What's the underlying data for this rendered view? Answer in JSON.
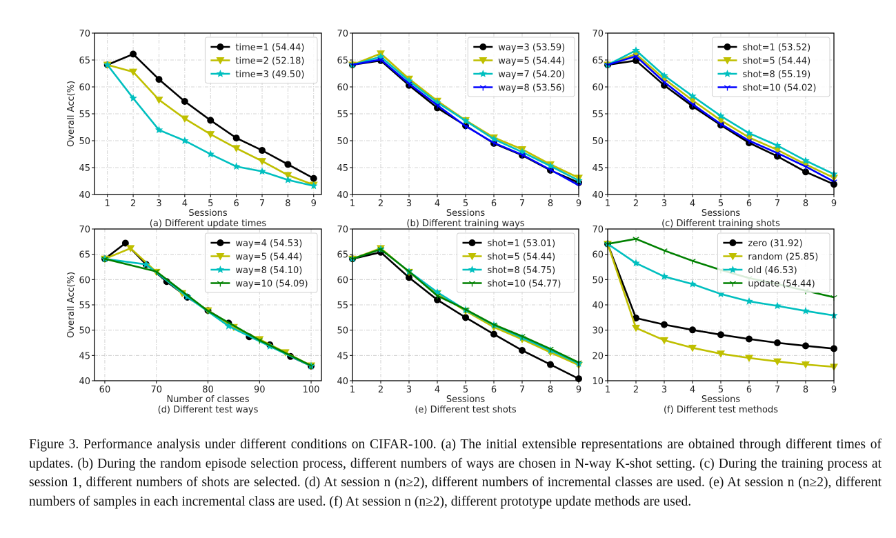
{
  "caption": "Figure 3. Performance analysis under different conditions on CIFAR-100. (a) The initial extensible representations are obtained through different times of updates. (b) During the random episode selection process, different numbers of ways are chosen in N-way K-shot setting. (c) During the training process at session 1, different numbers of shots are selected. (d) At session n (n≥2), different numbers of incremental classes are used. (e) At session n (n≥2), different numbers of samples in each incremental class are used. (f) At session n (n≥2), different prototype update methods are used.",
  "colors": {
    "k": "#000000",
    "y": "#bfbf00",
    "c": "#00bfbf",
    "b": "#0000ff",
    "g": "#008000"
  },
  "chart_data": [
    {
      "type": "line",
      "title": "(a) Different update times",
      "xlabel": "Sessions",
      "ylabel": "Overall Acc(%)",
      "xlim": [
        0.5,
        9.3
      ],
      "ylim": [
        40,
        70
      ],
      "xticks": [
        1,
        2,
        3,
        4,
        5,
        6,
        7,
        8,
        9
      ],
      "yticks": [
        40,
        45,
        50,
        55,
        60,
        65,
        70
      ],
      "grid": true,
      "legend": "top-right",
      "series": [
        {
          "name": "time=1 (54.44)",
          "color": "k",
          "marker": "circle",
          "x": [
            1,
            2,
            3,
            4,
            5,
            6,
            7,
            8,
            9
          ],
          "values": [
            64.1,
            66.1,
            61.4,
            57.3,
            53.8,
            50.5,
            48.2,
            45.6,
            43.0
          ]
        },
        {
          "name": "time=2 (52.18)",
          "color": "y",
          "marker": "triangle-down",
          "x": [
            1,
            2,
            3,
            4,
            5,
            6,
            7,
            8,
            9
          ],
          "values": [
            64.1,
            62.8,
            57.6,
            54.1,
            51.2,
            48.6,
            46.2,
            43.6,
            41.8
          ]
        },
        {
          "name": "time=3 (49.50)",
          "color": "c",
          "marker": "star",
          "x": [
            1,
            2,
            3,
            4,
            5,
            6,
            7,
            8,
            9
          ],
          "values": [
            64.1,
            57.9,
            52.0,
            50.0,
            47.5,
            45.2,
            44.3,
            42.7,
            41.6
          ]
        }
      ]
    },
    {
      "type": "line",
      "title": "(b) Different training ways",
      "xlabel": "Sessions",
      "ylabel": "",
      "xlim": [
        1,
        9
      ],
      "ylim": [
        40,
        70
      ],
      "xticks": [
        1,
        2,
        3,
        4,
        5,
        6,
        7,
        8,
        9
      ],
      "yticks": [
        40,
        45,
        50,
        55,
        60,
        65,
        70
      ],
      "grid": true,
      "legend": "top-right",
      "series": [
        {
          "name": "way=3 (53.59)",
          "color": "k",
          "marker": "circle",
          "x": [
            1,
            2,
            3,
            4,
            5,
            6,
            7,
            8,
            9
          ],
          "values": [
            64.1,
            64.9,
            60.3,
            56.1,
            52.8,
            49.5,
            47.3,
            44.5,
            42.2
          ]
        },
        {
          "name": "way=5 (54.44)",
          "color": "y",
          "marker": "triangle-down",
          "x": [
            1,
            2,
            3,
            4,
            5,
            6,
            7,
            8,
            9
          ],
          "values": [
            64.1,
            66.2,
            61.5,
            57.4,
            53.8,
            50.6,
            48.4,
            45.6,
            43.1
          ]
        },
        {
          "name": "way=7 (54.20)",
          "color": "c",
          "marker": "star",
          "x": [
            1,
            2,
            3,
            4,
            5,
            6,
            7,
            8,
            9
          ],
          "values": [
            64.1,
            65.6,
            61.1,
            57.1,
            53.7,
            50.3,
            47.9,
            45.3,
            42.6
          ]
        },
        {
          "name": "way=8 (53.56)",
          "color": "b",
          "marker": "tri",
          "x": [
            1,
            2,
            3,
            4,
            5,
            6,
            7,
            8,
            9
          ],
          "values": [
            64.1,
            65.1,
            60.6,
            56.6,
            52.7,
            49.6,
            47.4,
            44.6,
            41.7
          ]
        }
      ]
    },
    {
      "type": "line",
      "title": "(c) Different training shots",
      "xlabel": "Sessions",
      "ylabel": "",
      "xlim": [
        1,
        9
      ],
      "ylim": [
        40,
        70
      ],
      "xticks": [
        1,
        2,
        3,
        4,
        5,
        6,
        7,
        8,
        9
      ],
      "yticks": [
        40,
        45,
        50,
        55,
        60,
        65,
        70
      ],
      "grid": true,
      "legend": "top-right",
      "series": [
        {
          "name": "shot=1 (53.52)",
          "color": "k",
          "marker": "circle",
          "x": [
            1,
            2,
            3,
            4,
            5,
            6,
            7,
            8,
            9
          ],
          "values": [
            64.1,
            64.9,
            60.3,
            56.4,
            52.9,
            49.6,
            47.1,
            44.2,
            41.9
          ]
        },
        {
          "name": "shot=5 (54.44)",
          "color": "y",
          "marker": "triangle-down",
          "x": [
            1,
            2,
            3,
            4,
            5,
            6,
            7,
            8,
            9
          ],
          "values": [
            64.1,
            66.1,
            61.5,
            57.5,
            53.8,
            50.6,
            48.3,
            45.6,
            43.1
          ]
        },
        {
          "name": "shot=8 (55.19)",
          "color": "c",
          "marker": "star",
          "x": [
            1,
            2,
            3,
            4,
            5,
            6,
            7,
            8,
            9
          ],
          "values": [
            64.1,
            66.8,
            62.1,
            58.3,
            54.6,
            51.4,
            49.1,
            46.3,
            43.8
          ]
        },
        {
          "name": "shot=10 (54.02)",
          "color": "b",
          "marker": "tri",
          "x": [
            1,
            2,
            3,
            4,
            5,
            6,
            7,
            8,
            9
          ],
          "values": [
            64.1,
            65.7,
            60.9,
            56.8,
            53.1,
            50.0,
            47.7,
            45.2,
            42.4
          ]
        }
      ]
    },
    {
      "type": "line",
      "title": "(d) Different test ways",
      "xlabel": "Number of classes",
      "ylabel": "Overall Acc(%)",
      "xlim": [
        58,
        102
      ],
      "ylim": [
        40,
        70
      ],
      "xticks": [
        60,
        70,
        80,
        90,
        100
      ],
      "yticks": [
        40,
        45,
        50,
        55,
        60,
        65,
        70
      ],
      "grid": true,
      "legend": "top-right",
      "series": [
        {
          "name": "way=4 (54.53)",
          "color": "k",
          "marker": "circle",
          "x": [
            60,
            64,
            68,
            72,
            76,
            80,
            84,
            88,
            92,
            96,
            100
          ],
          "values": [
            64.1,
            67.2,
            63.0,
            59.6,
            56.5,
            53.9,
            51.4,
            48.7,
            47.1,
            44.8,
            42.9
          ]
        },
        {
          "name": "way=5 (54.44)",
          "color": "y",
          "marker": "triangle-down",
          "x": [
            60,
            65,
            70,
            75,
            80,
            85,
            90,
            95,
            100
          ],
          "values": [
            64.1,
            66.2,
            61.5,
            57.3,
            53.9,
            50.6,
            48.2,
            45.6,
            43.0
          ]
        },
        {
          "name": "way=8 (54.10)",
          "color": "c",
          "marker": "star",
          "x": [
            60,
            68,
            76,
            84,
            92,
            100
          ],
          "values": [
            64.1,
            63.0,
            56.6,
            50.8,
            46.8,
            42.9
          ]
        },
        {
          "name": "way=10 (54.09)",
          "color": "g",
          "marker": "tri",
          "x": [
            60,
            70,
            80,
            90,
            100
          ],
          "values": [
            64.1,
            61.6,
            53.8,
            48.0,
            43.0
          ]
        }
      ]
    },
    {
      "type": "line",
      "title": "(e) Different test shots",
      "xlabel": "Sessions",
      "ylabel": "",
      "xlim": [
        1,
        9
      ],
      "ylim": [
        40,
        70
      ],
      "xticks": [
        1,
        2,
        3,
        4,
        5,
        6,
        7,
        8,
        9
      ],
      "yticks": [
        40,
        45,
        50,
        55,
        60,
        65,
        70
      ],
      "grid": true,
      "legend": "top-right",
      "series": [
        {
          "name": "shot=1 (53.01)",
          "color": "k",
          "marker": "circle",
          "x": [
            1,
            2,
            3,
            4,
            5,
            6,
            7,
            8,
            9
          ],
          "values": [
            64.1,
            65.4,
            60.4,
            56.0,
            52.5,
            49.2,
            46.0,
            43.2,
            40.4
          ]
        },
        {
          "name": "shot=5 (54.44)",
          "color": "y",
          "marker": "triangle-down",
          "x": [
            1,
            2,
            3,
            4,
            5,
            6,
            7,
            8,
            9
          ],
          "values": [
            64.1,
            66.2,
            61.5,
            57.3,
            53.8,
            50.6,
            48.2,
            45.6,
            43.1
          ]
        },
        {
          "name": "shot=8 (54.75)",
          "color": "c",
          "marker": "star",
          "x": [
            1,
            2,
            3,
            4,
            5,
            6,
            7,
            8,
            9
          ],
          "values": [
            64.1,
            66.0,
            61.6,
            57.5,
            54.0,
            51.0,
            48.5,
            46.0,
            43.4
          ]
        },
        {
          "name": "shot=10 (54.77)",
          "color": "g",
          "marker": "tri",
          "x": [
            1,
            2,
            3,
            4,
            5,
            6,
            7,
            8,
            9
          ],
          "values": [
            64.1,
            66.0,
            61.6,
            56.8,
            54.1,
            51.1,
            48.8,
            46.3,
            43.6
          ]
        }
      ]
    },
    {
      "type": "line",
      "title": "(f) Different test methods",
      "xlabel": "Sessions",
      "ylabel": "",
      "xlim": [
        1,
        9
      ],
      "ylim": [
        10,
        70
      ],
      "xticks": [
        1,
        2,
        3,
        4,
        5,
        6,
        7,
        8,
        9
      ],
      "yticks": [
        10,
        20,
        30,
        40,
        50,
        60,
        70
      ],
      "grid": true,
      "legend": "top-right",
      "series": [
        {
          "name": "zero (31.92)",
          "color": "k",
          "marker": "circle",
          "x": [
            1,
            2,
            3,
            4,
            5,
            6,
            7,
            8,
            9
          ],
          "values": [
            64.1,
            34.8,
            32.2,
            30.1,
            28.2,
            26.5,
            25.0,
            23.8,
            22.7
          ]
        },
        {
          "name": "random (25.85)",
          "color": "y",
          "marker": "triangle-down",
          "x": [
            1,
            2,
            3,
            4,
            5,
            6,
            7,
            8,
            9
          ],
          "values": [
            64.1,
            30.9,
            26.0,
            23.0,
            20.7,
            19.0,
            17.6,
            16.4,
            15.5
          ]
        },
        {
          "name": "old (46.53)",
          "color": "c",
          "marker": "star",
          "x": [
            1,
            2,
            3,
            4,
            5,
            6,
            7,
            8,
            9
          ],
          "values": [
            64.1,
            56.5,
            51.2,
            48.2,
            44.3,
            41.4,
            39.6,
            37.6,
            35.8
          ]
        },
        {
          "name": "update (54.44)",
          "color": "g",
          "marker": "tri",
          "x": [
            1,
            2,
            3,
            4,
            5,
            6,
            7,
            8,
            9
          ],
          "values": [
            64.1,
            66.1,
            61.5,
            57.4,
            53.8,
            50.6,
            48.2,
            45.6,
            43.0
          ]
        }
      ]
    }
  ]
}
